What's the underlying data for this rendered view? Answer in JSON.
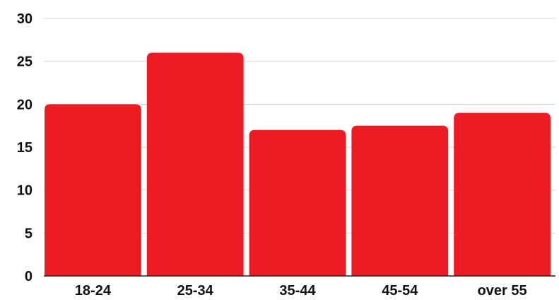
{
  "chart_data": {
    "type": "bar",
    "categories": [
      "18-24",
      "25-34",
      "35-44",
      "45-54",
      "over 55"
    ],
    "values": [
      20,
      26,
      17,
      17.5,
      19
    ],
    "title": "",
    "xlabel": "",
    "ylabel": "",
    "ylim": [
      0,
      30
    ],
    "yticks": [
      0,
      5,
      10,
      15,
      20,
      25,
      30
    ],
    "grid": true,
    "legend": "none",
    "bar_color": "#ED1C24"
  }
}
